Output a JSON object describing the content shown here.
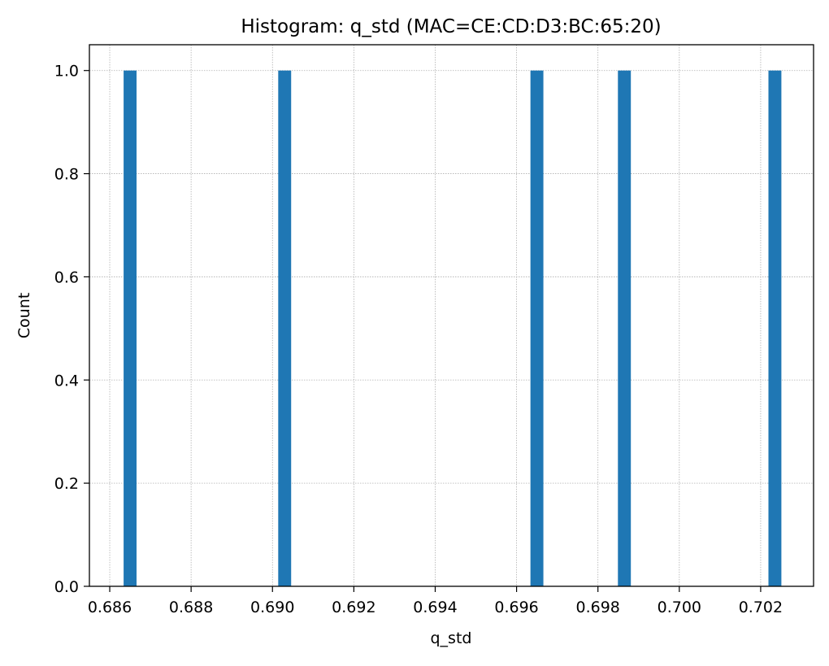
{
  "chart_data": {
    "type": "bar",
    "title": "Histogram: q_std (MAC=CE:CD:D3:BC:65:20)",
    "xlabel": "q_std",
    "ylabel": "Count",
    "xlim": [
      0.6855,
      0.7033
    ],
    "ylim": [
      0,
      1.05
    ],
    "bin_width": 0.000318,
    "bars": [
      {
        "x": 0.6865,
        "count": 1
      },
      {
        "x": 0.6903,
        "count": 1
      },
      {
        "x": 0.6965,
        "count": 1
      },
      {
        "x": 0.69865,
        "count": 1
      },
      {
        "x": 0.70235,
        "count": 1
      }
    ],
    "x_ticks": [
      {
        "value": 0.686,
        "label": "0.686"
      },
      {
        "value": 0.688,
        "label": "0.688"
      },
      {
        "value": 0.69,
        "label": "0.690"
      },
      {
        "value": 0.692,
        "label": "0.692"
      },
      {
        "value": 0.694,
        "label": "0.694"
      },
      {
        "value": 0.696,
        "label": "0.696"
      },
      {
        "value": 0.698,
        "label": "0.698"
      },
      {
        "value": 0.7,
        "label": "0.700"
      },
      {
        "value": 0.702,
        "label": "0.702"
      }
    ],
    "y_ticks": [
      {
        "value": 0.0,
        "label": "0.0"
      },
      {
        "value": 0.2,
        "label": "0.2"
      },
      {
        "value": 0.4,
        "label": "0.4"
      },
      {
        "value": 0.6,
        "label": "0.6"
      },
      {
        "value": 0.8,
        "label": "0.8"
      },
      {
        "value": 1.0,
        "label": "1.0"
      }
    ],
    "grid": true,
    "legend": false,
    "bar_color": "#1f77b4",
    "grid_color": "#b0b0b0"
  }
}
